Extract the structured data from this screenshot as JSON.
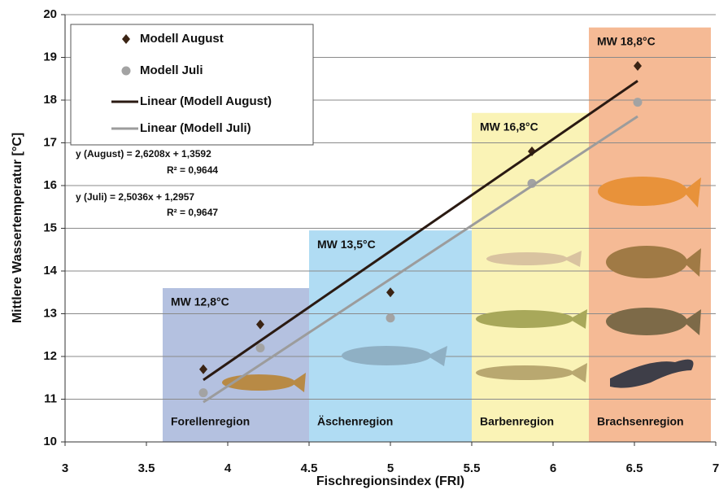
{
  "chart_data": {
    "type": "scatter",
    "xlabel": "Fischregionsindex (FRI)",
    "ylabel": "Mittlere Wassertemperatur [°C]",
    "xlim": [
      3,
      7
    ],
    "xticks": [
      3,
      3.5,
      4,
      4.5,
      5,
      5.5,
      6,
      6.5,
      7
    ],
    "ylim": [
      10,
      20
    ],
    "yticks": [
      10,
      11,
      12,
      13,
      14,
      15,
      16,
      17,
      18,
      19,
      20
    ],
    "grid": true,
    "regions": [
      {
        "label": "Forellenregion",
        "mw": "MW 12,8°C",
        "xlim": [
          3.6,
          4.5
        ],
        "ylim": [
          10,
          13.6
        ],
        "color": "#b4c1e0"
      },
      {
        "label": "Äschenregion",
        "mw": "MW 13,5°C",
        "xlim": [
          4.5,
          5.5
        ],
        "ylim": [
          10,
          14.95
        ],
        "color": "#b0dcf3"
      },
      {
        "label": "Barbenregion",
        "mw": "MW 16,8°C",
        "xlim": [
          5.5,
          6.22
        ],
        "ylim": [
          10,
          17.7
        ],
        "color": "#faf3b6"
      },
      {
        "label": "Brachsenregion",
        "mw": "MW 18,8°C",
        "xlim": [
          6.22,
          6.97
        ],
        "ylim": [
          10,
          19.7
        ],
        "color": "#f5ba95"
      }
    ],
    "series": [
      {
        "name": "Modell August",
        "kind": "points",
        "marker": "diamond",
        "color": "#3b2414",
        "x": [
          3.85,
          4.2,
          5,
          5.87,
          6.52
        ],
        "values": [
          11.7,
          12.75,
          13.5,
          16.8,
          18.8
        ]
      },
      {
        "name": "Modell Juli",
        "kind": "points",
        "marker": "circle",
        "color": "#a3a3a3",
        "x": [
          3.85,
          4.2,
          5,
          5.87,
          6.52
        ],
        "values": [
          11.15,
          12.2,
          12.9,
          16.05,
          17.95
        ]
      },
      {
        "name": "Linear (Modell August)",
        "kind": "line",
        "color": "#2a1a12",
        "x": [
          3.85,
          6.52
        ],
        "values": [
          11.45,
          18.45
        ]
      },
      {
        "name": "Linear (Modell Juli)",
        "kind": "line",
        "color": "#9c9c9c",
        "x": [
          3.85,
          6.52
        ],
        "values": [
          10.93,
          17.62
        ]
      }
    ],
    "annotations": [
      "y (August) = 2,6208x + 1,3592",
      "R² = 0,9644",
      "y (Juli) = 2,5036x + 1,2957",
      "R² = 0,9647"
    ]
  }
}
